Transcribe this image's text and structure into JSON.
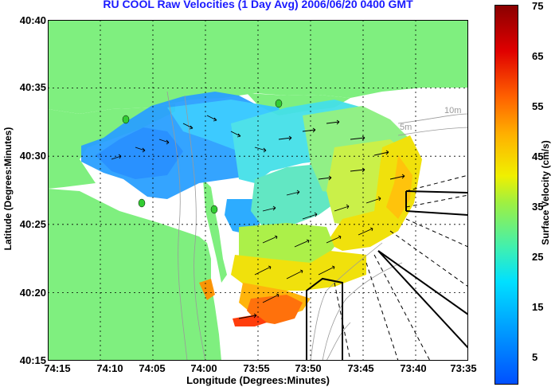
{
  "title": "RU COOL Raw Velocities (1 Day Avg) 2006/06/20 0400 GMT",
  "axes": {
    "xlabel": "Longitude (Degrees:Minutes)",
    "ylabel": "Latitude (Degrees:Minutes)",
    "xticks": [
      "74:15",
      "74:10",
      "74:05",
      "74:00",
      "73:55",
      "73:50",
      "73:45",
      "73:40",
      "73:35"
    ],
    "yticks": [
      "40:40",
      "40:35",
      "40:30",
      "40:25",
      "40:20",
      "40:15"
    ]
  },
  "colorbar": {
    "label": "Surface Velocity (cm/s)",
    "ticks": [
      "75",
      "65",
      "55",
      "45",
      "35",
      "25",
      "15",
      "5"
    ],
    "colors": [
      "#0050ff",
      "#00e0ff",
      "#a0f040",
      "#f0f000",
      "#ff6000",
      "#8a0000"
    ]
  },
  "depth_labels": [
    "10m",
    "5m"
  ],
  "colors": {
    "land": "#7fef7f",
    "water": "#ffffff",
    "title": "#1a1aff"
  }
}
